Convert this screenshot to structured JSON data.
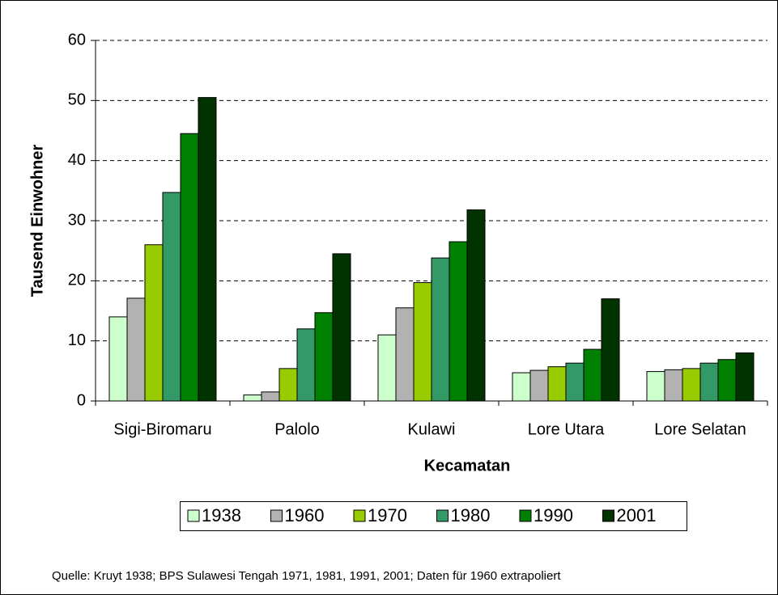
{
  "chart_data": {
    "type": "bar",
    "categories": [
      "Sigi-Biromaru",
      "Palolo",
      "Kulawi",
      "Lore Utara",
      "Lore Selatan"
    ],
    "series": [
      {
        "name": "1938",
        "color": "#ccffcc",
        "values": [
          14.0,
          1.0,
          11.0,
          4.7,
          4.9
        ]
      },
      {
        "name": "1960",
        "color": "#b2b2b2",
        "values": [
          17.1,
          1.5,
          15.5,
          5.1,
          5.2
        ]
      },
      {
        "name": "1970",
        "color": "#99cc00",
        "values": [
          26.0,
          5.4,
          19.7,
          5.7,
          5.4
        ]
      },
      {
        "name": "1980",
        "color": "#339966",
        "values": [
          34.7,
          12.0,
          23.8,
          6.3,
          6.3
        ]
      },
      {
        "name": "1990",
        "color": "#008000",
        "values": [
          44.5,
          14.7,
          26.5,
          8.6,
          6.9
        ]
      },
      {
        "name": "2001",
        "color": "#003300",
        "values": [
          50.5,
          24.5,
          31.8,
          17.0,
          8.0
        ]
      }
    ],
    "xlabel": "Kecamatan",
    "ylabel": "Tausend Einwohner",
    "ylim": [
      0,
      60
    ],
    "yticks": [
      0,
      10,
      20,
      30,
      40,
      50,
      60
    ],
    "grid": true,
    "legend": "bottom",
    "source": "Quelle: Kruyt 1938; BPS Sulawesi Tengah 1971, 1981, 1991, 2001; Daten für 1960 extrapoliert"
  }
}
